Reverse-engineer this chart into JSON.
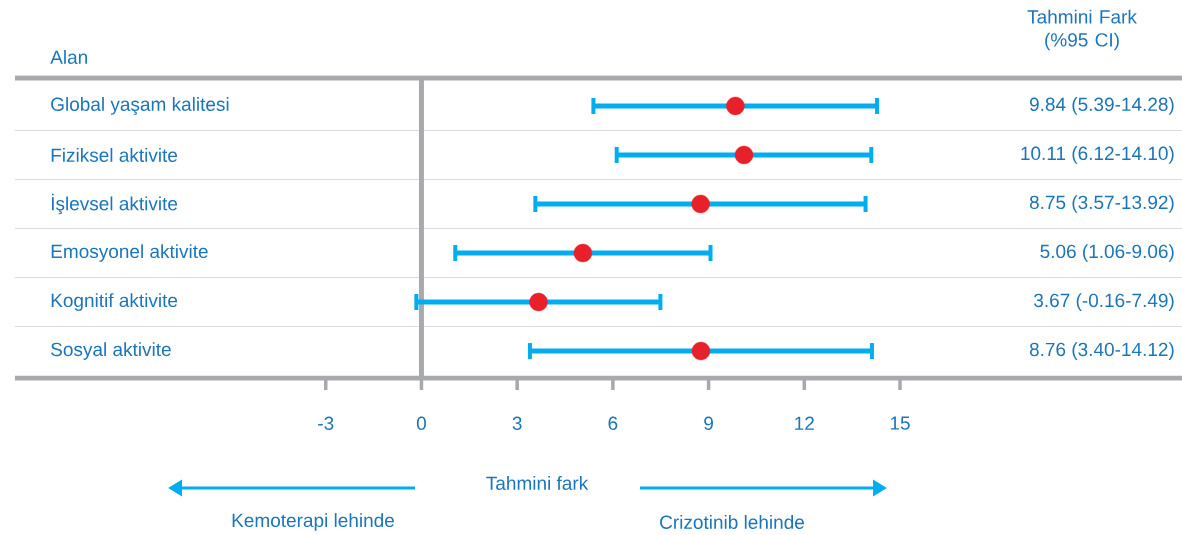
{
  "chart_data": {
    "type": "scatter",
    "orientation": "horizontal",
    "categories": [
      "Global yaşam kalitesi",
      "Fiziksel aktivite",
      "İşlevsel aktivite",
      "Emosyonel aktivite",
      "Kognitif aktivite",
      "Sosyal aktivite"
    ],
    "values": [
      9.84,
      10.11,
      8.75,
      5.06,
      3.67,
      8.76
    ],
    "errors": [
      [
        5.39,
        14.28
      ],
      [
        6.12,
        14.1
      ],
      [
        3.57,
        13.92
      ],
      [
        1.06,
        9.06
      ],
      [
        -0.16,
        7.49
      ],
      [
        3.4,
        14.12
      ]
    ],
    "color": "#e8202a",
    "xlabel": "Tahmini fark",
    "xlim": [
      -12.74,
      23.84
    ],
    "xticks": [
      -3,
      0,
      3,
      6,
      9,
      12,
      15
    ],
    "ref_lines": [
      {
        "axis": "x",
        "value": 0,
        "color": "#a7a9ac"
      }
    ],
    "annotations": [
      "Alan",
      "Tahmini Fark (%95 CI)",
      "Kemoterapi lehinde",
      "Crizotinib lehinde",
      "9.84 (5.39-14.28)",
      "10.11 (6.12-14.10)",
      "8.75 (3.57-13.92)",
      "5.06 (1.06-9.06)",
      "3.67 (-0.16-7.49)",
      "8.76 (3.40-14.12)"
    ]
  }
}
